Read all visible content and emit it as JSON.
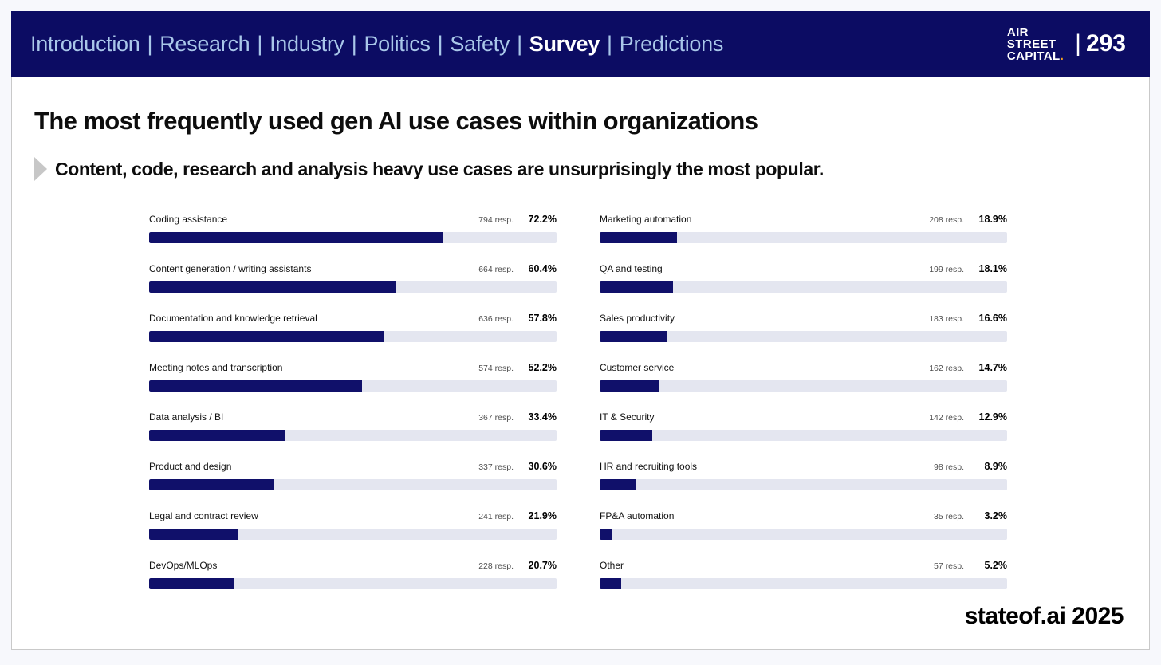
{
  "header": {
    "nav_items": [
      {
        "label": "Introduction",
        "active": false
      },
      {
        "label": "Research",
        "active": false
      },
      {
        "label": "Industry",
        "active": false
      },
      {
        "label": "Politics",
        "active": false
      },
      {
        "label": "Safety",
        "active": false
      },
      {
        "label": "Survey",
        "active": true
      },
      {
        "label": "Predictions",
        "active": false
      }
    ],
    "nav_separator": "|",
    "logo_lines": [
      "AIR",
      "STREET",
      "CAPITAL"
    ],
    "logo_dot": ".",
    "page_pipe": "|",
    "page_number": "293"
  },
  "title": "The most frequently used gen AI use cases within organizations",
  "subtitle": "Content, code, research and analysis heavy use cases are unsurprisingly the most popular.",
  "chart_data": {
    "type": "bar",
    "orientation": "horizontal",
    "unit": "%",
    "xlim": [
      0,
      100
    ],
    "resp_suffix": "resp.",
    "pct_suffix": "%",
    "legend": "none",
    "grid": false,
    "columns": [
      {
        "rows": [
          {
            "label": "Coding assistance",
            "respondents": 794,
            "pct": 72.2
          },
          {
            "label": "Content generation / writing assistants",
            "respondents": 664,
            "pct": 60.4
          },
          {
            "label": "Documentation and knowledge retrieval",
            "respondents": 636,
            "pct": 57.8
          },
          {
            "label": "Meeting notes and transcription",
            "respondents": 574,
            "pct": 52.2
          },
          {
            "label": "Data analysis / BI",
            "respondents": 367,
            "pct": 33.4
          },
          {
            "label": "Product and design",
            "respondents": 337,
            "pct": 30.6
          },
          {
            "label": "Legal and contract review",
            "respondents": 241,
            "pct": 21.9
          },
          {
            "label": "DevOps/MLOps",
            "respondents": 228,
            "pct": 20.7
          }
        ]
      },
      {
        "rows": [
          {
            "label": "Marketing automation",
            "respondents": 208,
            "pct": 18.9
          },
          {
            "label": "QA and testing",
            "respondents": 199,
            "pct": 18.1
          },
          {
            "label": "Sales productivity",
            "respondents": 183,
            "pct": 16.6
          },
          {
            "label": "Customer service",
            "respondents": 162,
            "pct": 14.7
          },
          {
            "label": "IT & Security",
            "respondents": 142,
            "pct": 12.9
          },
          {
            "label": "HR and recruiting tools",
            "respondents": 98,
            "pct": 8.9
          },
          {
            "label": "FP&A automation",
            "respondents": 35,
            "pct": 3.2
          },
          {
            "label": "Other",
            "respondents": 57,
            "pct": 5.2
          }
        ]
      }
    ]
  },
  "footer": {
    "brand": "stateof.ai 2025"
  },
  "colors": {
    "header_bg": "#0c0c63",
    "nav_text": "#a9c7e9",
    "nav_active_text": "#ffffff",
    "bar_fill": "#10106a",
    "bar_track": "#e4e6f0",
    "accent_orange": "#f5a21b",
    "page_bg": "#f7f8fc",
    "card_border": "#c9c9c9"
  }
}
